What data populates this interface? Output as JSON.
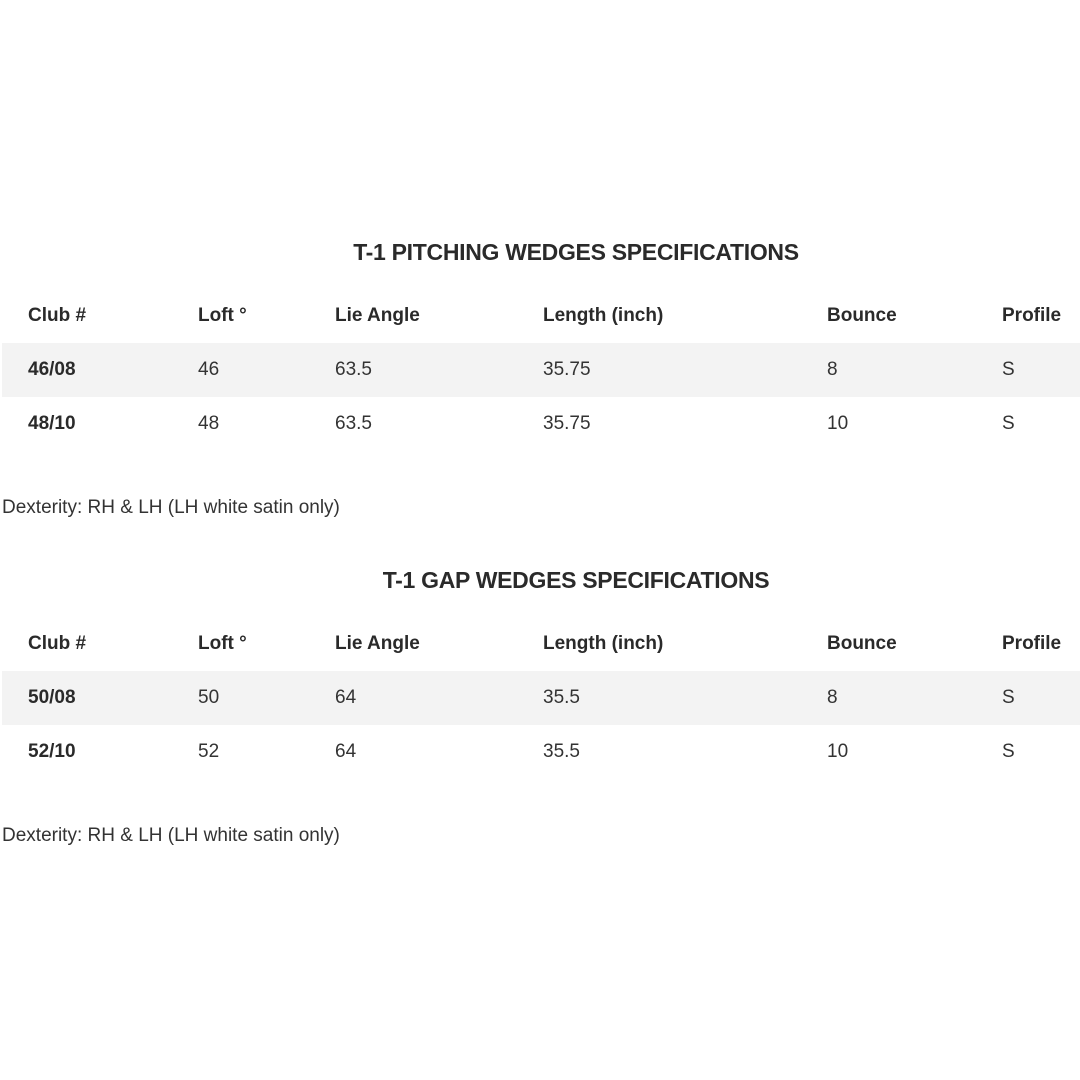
{
  "columns": [
    "Club #",
    "Loft °",
    "Lie Angle",
    "Length (inch)",
    "Bounce",
    "Profile"
  ],
  "tables": [
    {
      "title": "T-1 PITCHING WEDGES SPECIFICATIONS",
      "rows": [
        [
          "46/08",
          "46",
          "63.5",
          "35.75",
          "8",
          "S"
        ],
        [
          "48/10",
          "48",
          "63.5",
          "35.75",
          "10",
          "S"
        ]
      ],
      "note": "Dexterity: RH & LH (LH white satin only)"
    },
    {
      "title": "T-1 GAP WEDGES SPECIFICATIONS",
      "rows": [
        [
          "50/08",
          "50",
          "64",
          "35.5",
          "8",
          "S"
        ],
        [
          "52/10",
          "52",
          "64",
          "35.5",
          "10",
          "S"
        ]
      ],
      "note": "Dexterity: RH & LH (LH white satin only)"
    }
  ]
}
